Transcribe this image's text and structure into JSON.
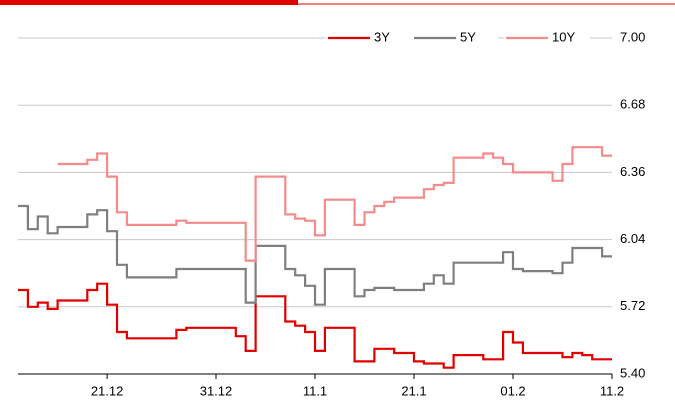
{
  "chart_data": {
    "type": "line",
    "drawstyle": "steps-post",
    "categories": [
      null,
      null,
      null,
      null,
      null,
      null,
      null,
      null,
      null,
      "21.12",
      null,
      null,
      null,
      null,
      null,
      null,
      null,
      null,
      null,
      null,
      "31.12",
      null,
      null,
      null,
      null,
      null,
      null,
      null,
      null,
      null,
      "11.1",
      null,
      null,
      null,
      null,
      null,
      null,
      null,
      null,
      null,
      "21.1",
      null,
      null,
      null,
      null,
      null,
      null,
      null,
      null,
      null,
      "01.2",
      null,
      null,
      null,
      null,
      null,
      null,
      null,
      null,
      null,
      "11.2"
    ],
    "series": [
      {
        "name": "3Y",
        "color": "#e00000",
        "values": [
          5.8,
          5.72,
          5.74,
          5.71,
          5.75,
          5.75,
          5.75,
          5.8,
          5.83,
          5.73,
          5.6,
          5.57,
          5.57,
          5.57,
          5.57,
          5.57,
          5.61,
          5.62,
          5.62,
          5.62,
          5.62,
          5.62,
          5.58,
          5.51,
          5.77,
          5.77,
          5.77,
          5.65,
          5.63,
          5.6,
          5.51,
          5.62,
          5.62,
          5.62,
          5.46,
          5.46,
          5.52,
          5.52,
          5.5,
          5.5,
          5.46,
          5.45,
          5.45,
          5.43,
          5.49,
          5.49,
          5.49,
          5.47,
          5.47,
          5.6,
          5.55,
          5.5,
          5.5,
          5.5,
          5.5,
          5.48,
          5.5,
          5.49,
          5.47,
          5.47,
          5.47
        ]
      },
      {
        "name": "5Y",
        "color": "#7f7f7f",
        "values": [
          6.2,
          6.09,
          6.15,
          6.07,
          6.1,
          6.1,
          6.1,
          6.16,
          6.18,
          6.08,
          5.92,
          5.86,
          5.86,
          5.86,
          5.86,
          5.86,
          5.9,
          5.9,
          5.9,
          5.9,
          5.9,
          5.9,
          5.9,
          5.74,
          6.01,
          6.01,
          6.01,
          5.9,
          5.87,
          5.82,
          5.73,
          5.9,
          5.9,
          5.9,
          5.77,
          5.8,
          5.81,
          5.81,
          5.8,
          5.8,
          5.8,
          5.83,
          5.87,
          5.83,
          5.93,
          5.93,
          5.93,
          5.93,
          5.93,
          5.98,
          5.9,
          5.89,
          5.89,
          5.89,
          5.88,
          5.93,
          6.0,
          6.0,
          6.0,
          5.96,
          5.96
        ]
      },
      {
        "name": "10Y",
        "color": "#f38b8b",
        "values": [
          null,
          null,
          null,
          null,
          6.4,
          6.4,
          6.4,
          6.42,
          6.45,
          6.34,
          6.17,
          6.11,
          6.11,
          6.11,
          6.11,
          6.11,
          6.13,
          6.12,
          6.12,
          6.12,
          6.12,
          6.12,
          6.12,
          5.94,
          6.34,
          6.34,
          6.34,
          6.16,
          6.14,
          6.13,
          6.06,
          6.23,
          6.23,
          6.23,
          6.11,
          6.17,
          6.2,
          6.22,
          6.24,
          6.24,
          6.24,
          6.28,
          6.3,
          6.31,
          6.43,
          6.43,
          6.43,
          6.45,
          6.43,
          6.4,
          6.36,
          6.36,
          6.36,
          6.36,
          6.32,
          6.4,
          6.48,
          6.48,
          6.48,
          6.44,
          6.44
        ]
      }
    ],
    "ylim": [
      5.4,
      7.0
    ],
    "yticks": [
      {
        "value": 5.4,
        "label": "5.40"
      },
      5.72,
      6.04,
      6.36,
      6.68,
      {
        "value": 7.0,
        "label": "7.00"
      }
    ],
    "grid": true,
    "legend": "top"
  }
}
